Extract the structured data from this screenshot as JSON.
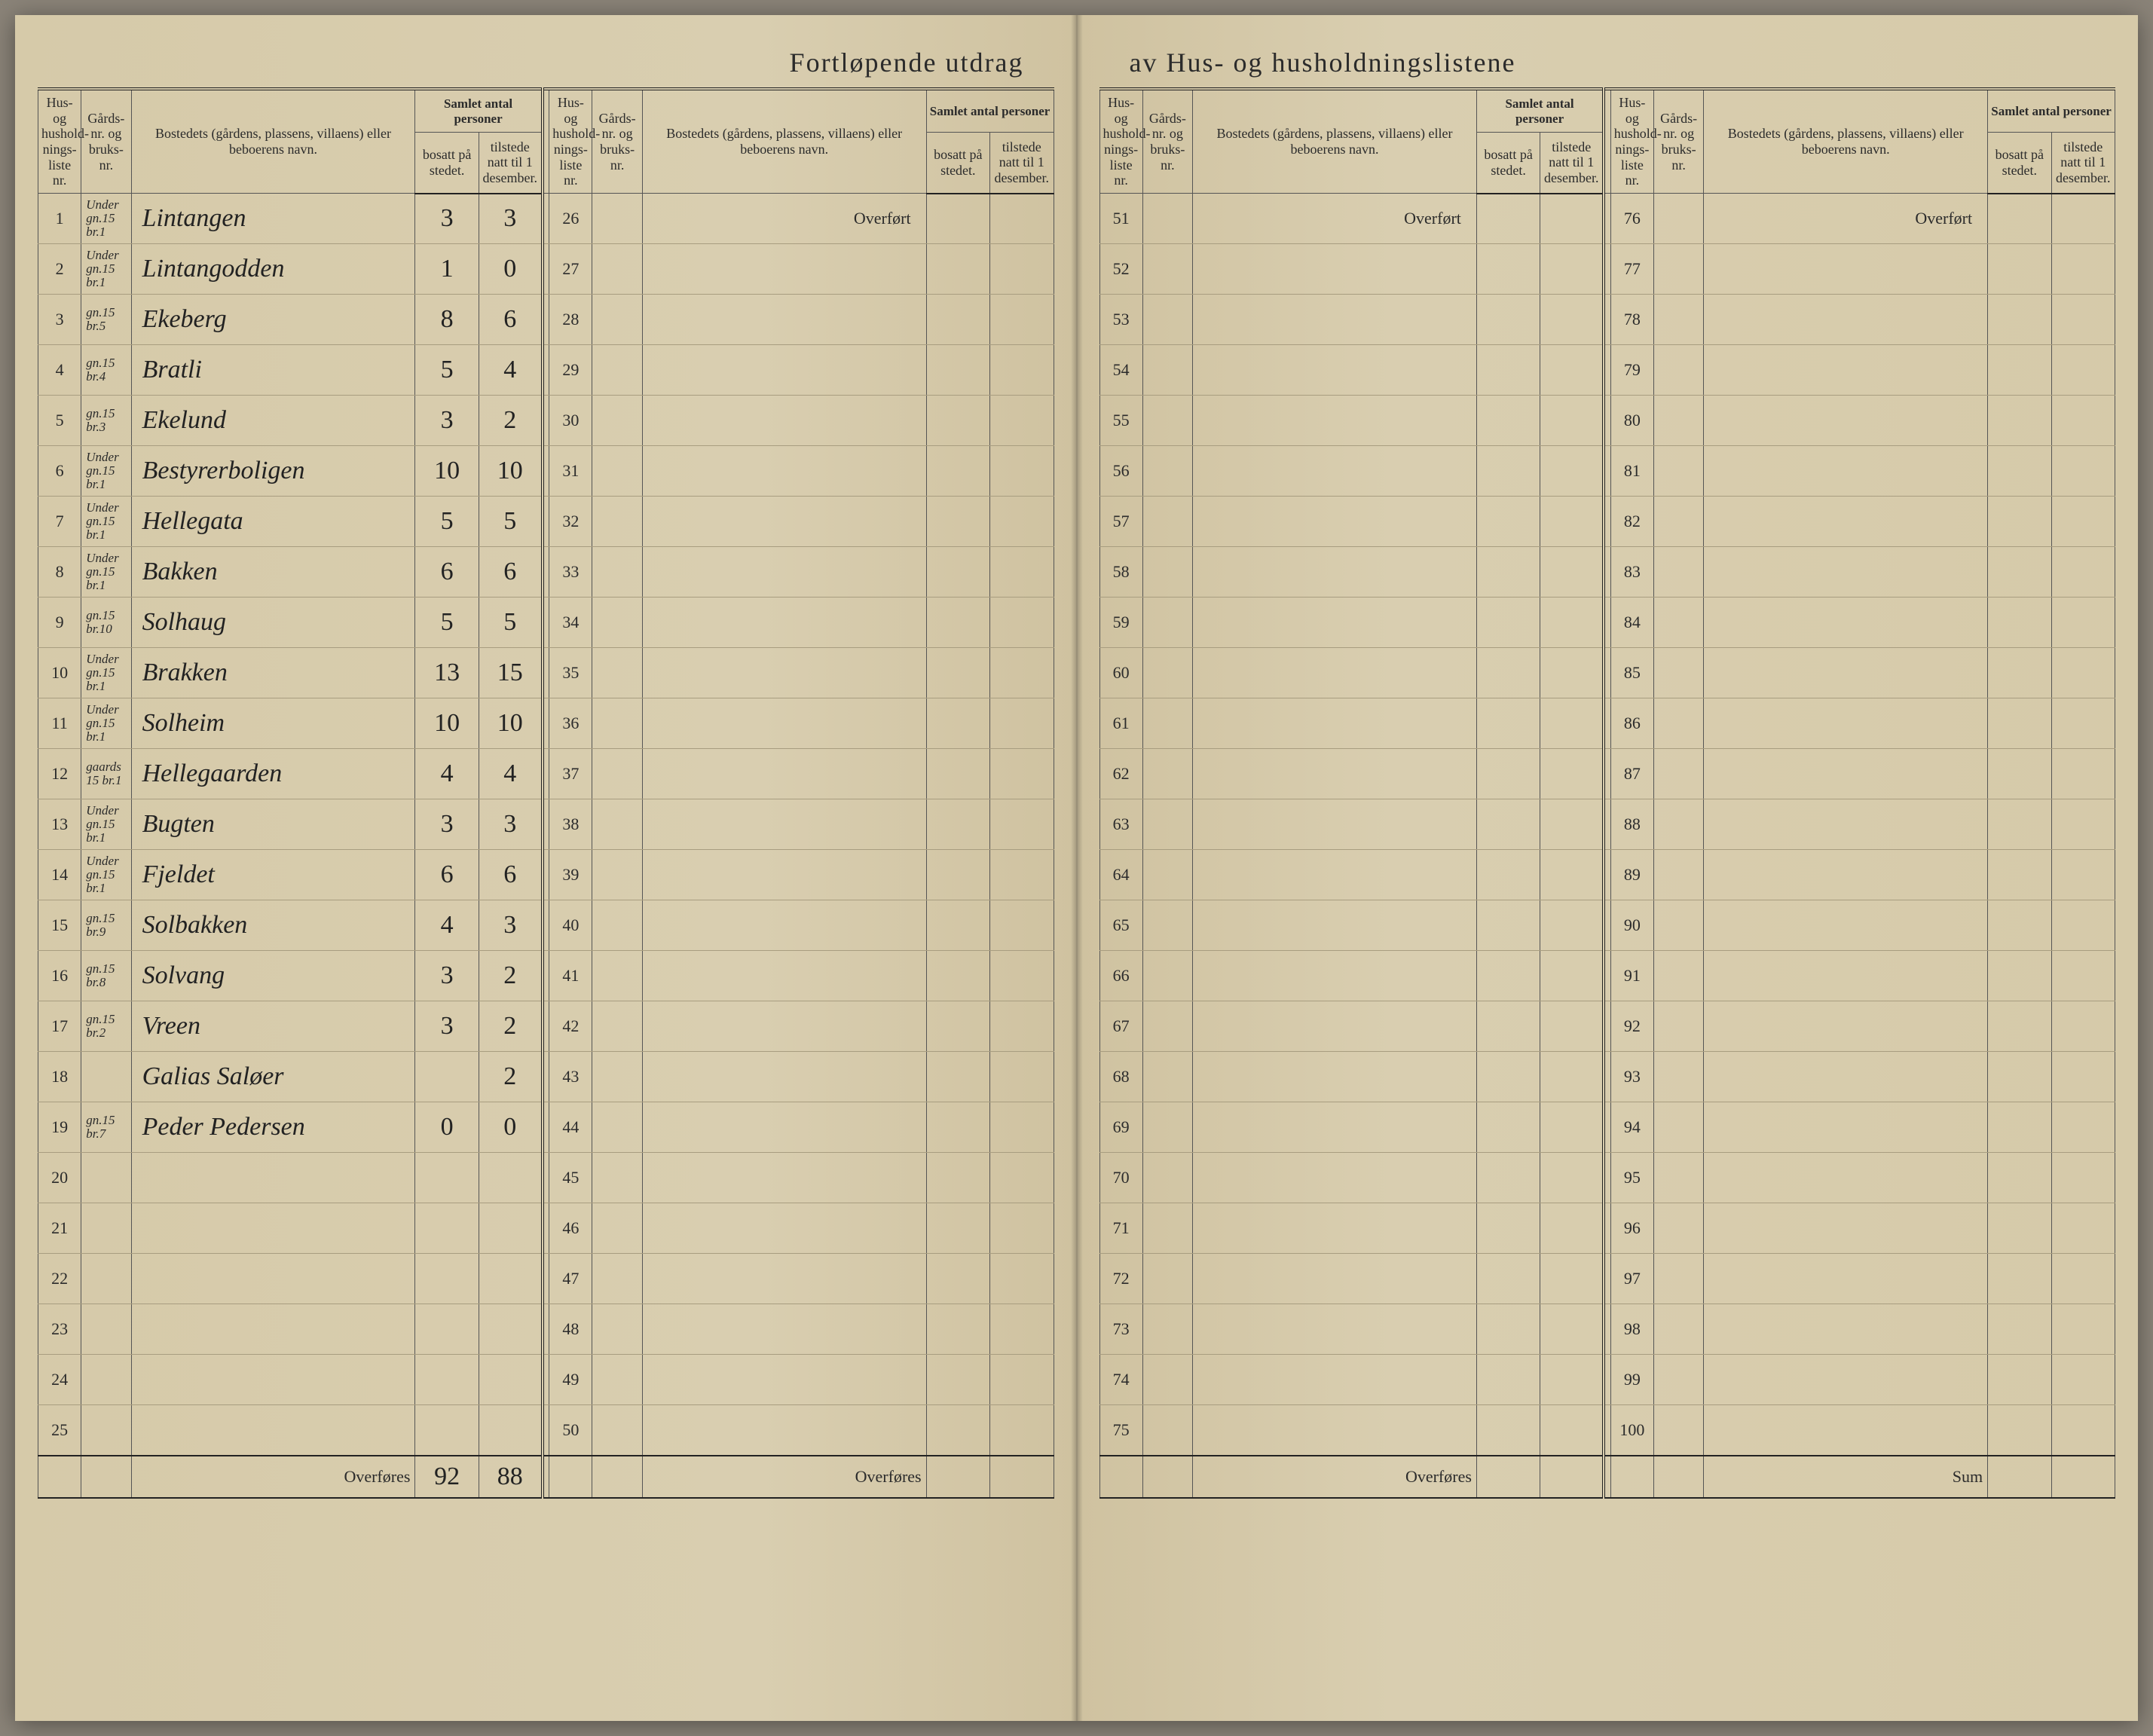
{
  "title_left": "Fortløpende utdrag",
  "title_right": "av Hus- og husholdningslistene",
  "headers": {
    "liste": "Hus- og hushold-nings-liste nr.",
    "gard": "Gårds-nr. og bruks-nr.",
    "navn": "Bostedets (gårdens, plassens, villaens) eller beboerens navn.",
    "samlet": "Samlet antal personer",
    "bosatt": "bosatt på stedet.",
    "tilstede": "tilstede natt til 1 desember."
  },
  "overfort": "Overført",
  "overfores": "Overføres",
  "sum": "Sum",
  "colors": {
    "paper": "#d9ceb0",
    "ink": "#2b2b2b",
    "rule": "#555555",
    "faint_rule": "#a89d80"
  },
  "typography": {
    "title_size_pt": 27,
    "header_size_pt": 13,
    "body_size_pt": 16,
    "script_size_pt": 25
  },
  "panels": [
    {
      "start": 1,
      "end": 25,
      "rows": [
        {
          "n": 1,
          "g": "Under gn.15 br.1",
          "navn": "Lintangen",
          "b": "3",
          "t": "3"
        },
        {
          "n": 2,
          "g": "Under gn.15 br.1",
          "navn": "Lintangodden",
          "b": "1",
          "t": "0"
        },
        {
          "n": 3,
          "g": "gn.15 br.5",
          "navn": "Ekeberg",
          "b": "8",
          "t": "6"
        },
        {
          "n": 4,
          "g": "gn.15 br.4",
          "navn": "Bratli",
          "b": "5",
          "t": "4"
        },
        {
          "n": 5,
          "g": "gn.15 br.3",
          "navn": "Ekelund",
          "b": "3",
          "t": "2"
        },
        {
          "n": 6,
          "g": "Under gn.15 br.1",
          "navn": "Bestyrerboligen",
          "b": "10",
          "t": "10"
        },
        {
          "n": 7,
          "g": "Under gn.15 br.1",
          "navn": "Hellegata",
          "b": "5",
          "t": "5"
        },
        {
          "n": 8,
          "g": "Under gn.15 br.1",
          "navn": "Bakken",
          "b": "6",
          "t": "6"
        },
        {
          "n": 9,
          "g": "gn.15 br.10",
          "navn": "Solhaug",
          "b": "5",
          "t": "5"
        },
        {
          "n": 10,
          "g": "Under gn.15 br.1",
          "navn": "Brakken",
          "b": "13",
          "t": "15"
        },
        {
          "n": 11,
          "g": "Under gn.15 br.1",
          "navn": "Solheim",
          "b": "10",
          "t": "10"
        },
        {
          "n": 12,
          "g": "gaards 15 br.1",
          "navn": "Hellegaarden",
          "b": "4",
          "t": "4"
        },
        {
          "n": 13,
          "g": "Under gn.15 br.1",
          "navn": "Bugten",
          "b": "3",
          "t": "3"
        },
        {
          "n": 14,
          "g": "Under gn.15 br.1",
          "navn": "Fjeldet",
          "b": "6",
          "t": "6"
        },
        {
          "n": 15,
          "g": "gn.15 br.9",
          "navn": "Solbakken",
          "b": "4",
          "t": "3"
        },
        {
          "n": 16,
          "g": "gn.15 br.8",
          "navn": "Solvang",
          "b": "3",
          "t": "2"
        },
        {
          "n": 17,
          "g": "gn.15 br.2",
          "navn": "Vreen",
          "b": "3",
          "t": "2"
        },
        {
          "n": 18,
          "g": "",
          "navn": "Galias Saløer",
          "b": "",
          "t": "2"
        },
        {
          "n": 19,
          "g": "gn.15 br.7",
          "navn": "Peder Pedersen",
          "b": "0",
          "t": "0"
        },
        {
          "n": 20,
          "g": "",
          "navn": "",
          "b": "",
          "t": ""
        },
        {
          "n": 21,
          "g": "",
          "navn": "",
          "b": "",
          "t": ""
        },
        {
          "n": 22,
          "g": "",
          "navn": "",
          "b": "",
          "t": ""
        },
        {
          "n": 23,
          "g": "",
          "navn": "",
          "b": "",
          "t": ""
        },
        {
          "n": 24,
          "g": "",
          "navn": "",
          "b": "",
          "t": ""
        },
        {
          "n": 25,
          "g": "",
          "navn": "",
          "b": "",
          "t": ""
        }
      ],
      "footer": {
        "label": "Overføres",
        "b": "92",
        "t": "88"
      }
    },
    {
      "start": 26,
      "end": 50,
      "rows": [],
      "footer": {
        "label": "Overføres",
        "b": "",
        "t": ""
      }
    },
    {
      "start": 51,
      "end": 75,
      "rows": [],
      "footer": {
        "label": "Overføres",
        "b": "",
        "t": ""
      }
    },
    {
      "start": 76,
      "end": 100,
      "rows": [],
      "footer": {
        "label": "Sum",
        "b": "",
        "t": ""
      }
    }
  ]
}
